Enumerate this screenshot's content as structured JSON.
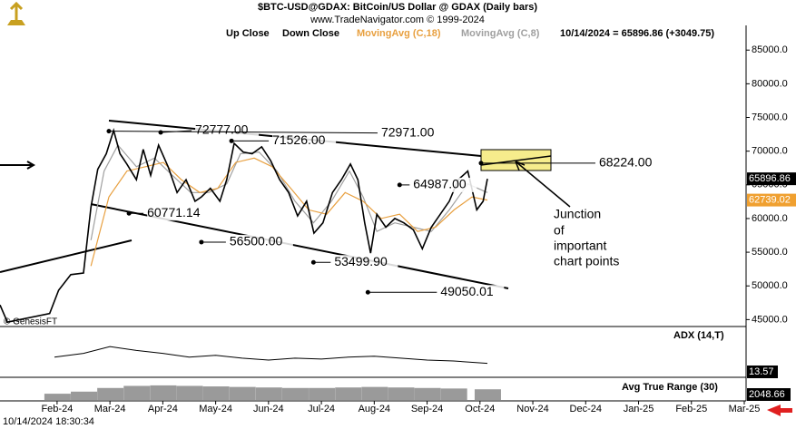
{
  "chart_data": {
    "type": "line",
    "title": "$BTC-USD@GDAX:  BitCoin/US Dollar @ GDAX  (Daily bars)",
    "subtitle": "www.TradeNavigator.com © 1999-2024",
    "legend": [
      "Up Close",
      "Down Close"
    ],
    "status": "10/14/2024 = 65896.86 (+3049.75)",
    "source": "© GenesisFT",
    "timestamp": "10/14/2024 18:30:34",
    "note": [
      "Junction",
      "of",
      "important",
      "chart points"
    ],
    "xlim": [
      0.92,
      15.0
    ],
    "xticks": [
      {
        "value": 2,
        "label": "Feb-24"
      },
      {
        "value": 3,
        "label": "Mar-24"
      },
      {
        "value": 4,
        "label": "Apr-24"
      },
      {
        "value": 5,
        "label": "May-24"
      },
      {
        "value": 6,
        "label": "Jun-24"
      },
      {
        "value": 7,
        "label": "Jul-24"
      },
      {
        "value": 8,
        "label": "Aug-24"
      },
      {
        "value": 9,
        "label": "Sep-24"
      },
      {
        "value": 10,
        "label": "Oct-24"
      },
      {
        "value": 11,
        "label": "Nov-24"
      },
      {
        "value": 12,
        "label": "Dec-24"
      },
      {
        "value": 13,
        "label": "Jan-25"
      },
      {
        "value": 14,
        "label": "Feb-25"
      },
      {
        "value": 15,
        "label": "Mar-25"
      }
    ],
    "ylim": [
      44000,
      86000
    ],
    "yticks": [
      {
        "value": 45000,
        "label": "45000.0"
      },
      {
        "value": 50000,
        "label": "50000.0"
      },
      {
        "value": 55000,
        "label": "55000.0"
      },
      {
        "value": 60000,
        "label": "60000.0"
      },
      {
        "value": 65000,
        "label": "65000.0"
      },
      {
        "value": 70000,
        "label": "70000.0"
      },
      {
        "value": 75000,
        "label": "75000.0"
      },
      {
        "value": 80000,
        "label": "80000.0"
      },
      {
        "value": 85000,
        "label": "85000.0"
      }
    ],
    "series": [
      {
        "color": "#000000",
        "x": [
          0.92,
          1.06,
          1.86,
          2.03,
          2.26,
          2.5,
          2.64,
          2.77,
          2.93,
          3.07,
          3.19,
          3.32,
          3.5,
          3.63,
          3.77,
          3.92,
          4.1,
          4.27,
          4.44,
          4.61,
          4.73,
          4.9,
          5.08,
          5.21,
          5.35,
          5.52,
          5.69,
          5.87,
          6.04,
          6.21,
          6.38,
          6.55,
          6.72,
          6.86,
          7.03,
          7.21,
          7.38,
          7.55,
          7.69,
          7.82,
          7.93,
          8.05,
          8.22,
          8.39,
          8.56,
          8.74,
          8.91,
          9.08,
          9.25,
          9.42,
          9.59,
          9.77,
          9.94,
          10.06,
          10.14
        ],
        "values": [
          47180,
          44620,
          45900,
          49360,
          51670,
          51920,
          61670,
          67310,
          69620,
          73080,
          69620,
          68080,
          65770,
          70260,
          66410,
          70900,
          67690,
          63850,
          65770,
          62560,
          63210,
          64490,
          62560,
          65770,
          71150,
          69870,
          69620,
          70640,
          68590,
          65770,
          63850,
          60380,
          62560,
          57820,
          59360,
          63850,
          65770,
          68080,
          65770,
          59360,
          54870,
          60640,
          58720,
          60000,
          59360,
          58330,
          55510,
          58720,
          60640,
          62560,
          65770,
          67050,
          61280,
          62560,
          65896.86
        ]
      },
      {
        "name": "MovingAvg (C,18)",
        "color": "#e8a040",
        "x": [
          2.64,
          2.98,
          3.32,
          3.67,
          4.01,
          4.35,
          4.7,
          5.04,
          5.38,
          5.73,
          6.07,
          6.42,
          6.76,
          7.1,
          7.45,
          7.79,
          8.13,
          8.48,
          8.82,
          9.16,
          9.51,
          9.85,
          10.14
        ],
        "values": [
          52950,
          63210,
          67050,
          67690,
          68330,
          65770,
          63850,
          64490,
          68330,
          68970,
          67690,
          64490,
          61280,
          60640,
          63850,
          62560,
          60000,
          60640,
          58080,
          58720,
          61280,
          63210,
          62739.02
        ]
      },
      {
        "name": "MovingAvg (C,8)",
        "color": "#a0a0a0",
        "x": [
          2.64,
          2.89,
          3.15,
          3.5,
          3.84,
          4.18,
          4.53,
          4.87,
          5.21,
          5.47,
          5.82,
          6.16,
          6.5,
          6.85,
          7.19,
          7.53,
          7.79,
          8.05,
          8.39,
          8.74,
          9.08,
          9.42,
          9.77,
          10.14
        ],
        "values": [
          56790,
          67050,
          70900,
          67690,
          68970,
          66410,
          63850,
          63850,
          65130,
          69620,
          69870,
          67050,
          62560,
          59360,
          62560,
          67050,
          63210,
          58080,
          59360,
          58720,
          58080,
          61280,
          65130,
          63850
        ]
      }
    ],
    "axis_tags": [
      {
        "value": 65896.86,
        "color": "#000000"
      },
      {
        "value": 62739.02,
        "color": "#f0a030"
      }
    ],
    "annotations": [
      {
        "x": 3.96,
        "value": 72777,
        "label": "72777.00"
      },
      {
        "x": 5.3,
        "value": 71526,
        "label": "71526.00"
      },
      {
        "x": 2.98,
        "value": 72971,
        "label": "72971.00"
      },
      {
        "x": 10.02,
        "value": 68224,
        "label": "68224.00"
      },
      {
        "x": 8.48,
        "value": 64987,
        "label": "64987.00"
      },
      {
        "x": 3.36,
        "value": 60771.14,
        "label": "60771.14"
      },
      {
        "x": 4.73,
        "value": 56500,
        "label": "56500.00"
      },
      {
        "x": 6.85,
        "value": 53499.9,
        "label": "53499.90"
      },
      {
        "x": 7.88,
        "value": 49050.01,
        "label": "49050.01"
      }
    ],
    "adx": {
      "name": "ADX (14,T)",
      "color": "#000000",
      "ylim": [
        0,
        50
      ],
      "x": [
        1.95,
        2.5,
        3.0,
        3.5,
        4.0,
        4.5,
        5.0,
        5.5,
        6.0,
        6.5,
        7.0,
        7.5,
        8.0,
        8.5,
        9.0,
        9.5,
        10.14
      ],
      "values": [
        20,
        24,
        31,
        27,
        24,
        20,
        22,
        19,
        17,
        19,
        18,
        20,
        21,
        19,
        17,
        16,
        13.57
      ],
      "tag": 13.57
    },
    "atr": {
      "name": "Avg True Range (30)",
      "color": "#9a9a9a",
      "ylim": [
        0,
        4000
      ],
      "x": [
        2.0,
        2.5,
        3.0,
        3.5,
        4.0,
        4.5,
        5.0,
        5.5,
        6.0,
        6.5,
        7.0,
        7.5,
        8.0,
        8.5,
        9.0,
        9.5,
        10.14
      ],
      "values": [
        1200,
        1600,
        2300,
        2700,
        2800,
        2700,
        2600,
        2500,
        2400,
        2300,
        2300,
        2400,
        2500,
        2400,
        2300,
        2200,
        2048.66
      ],
      "tag": 2048.66
    }
  }
}
